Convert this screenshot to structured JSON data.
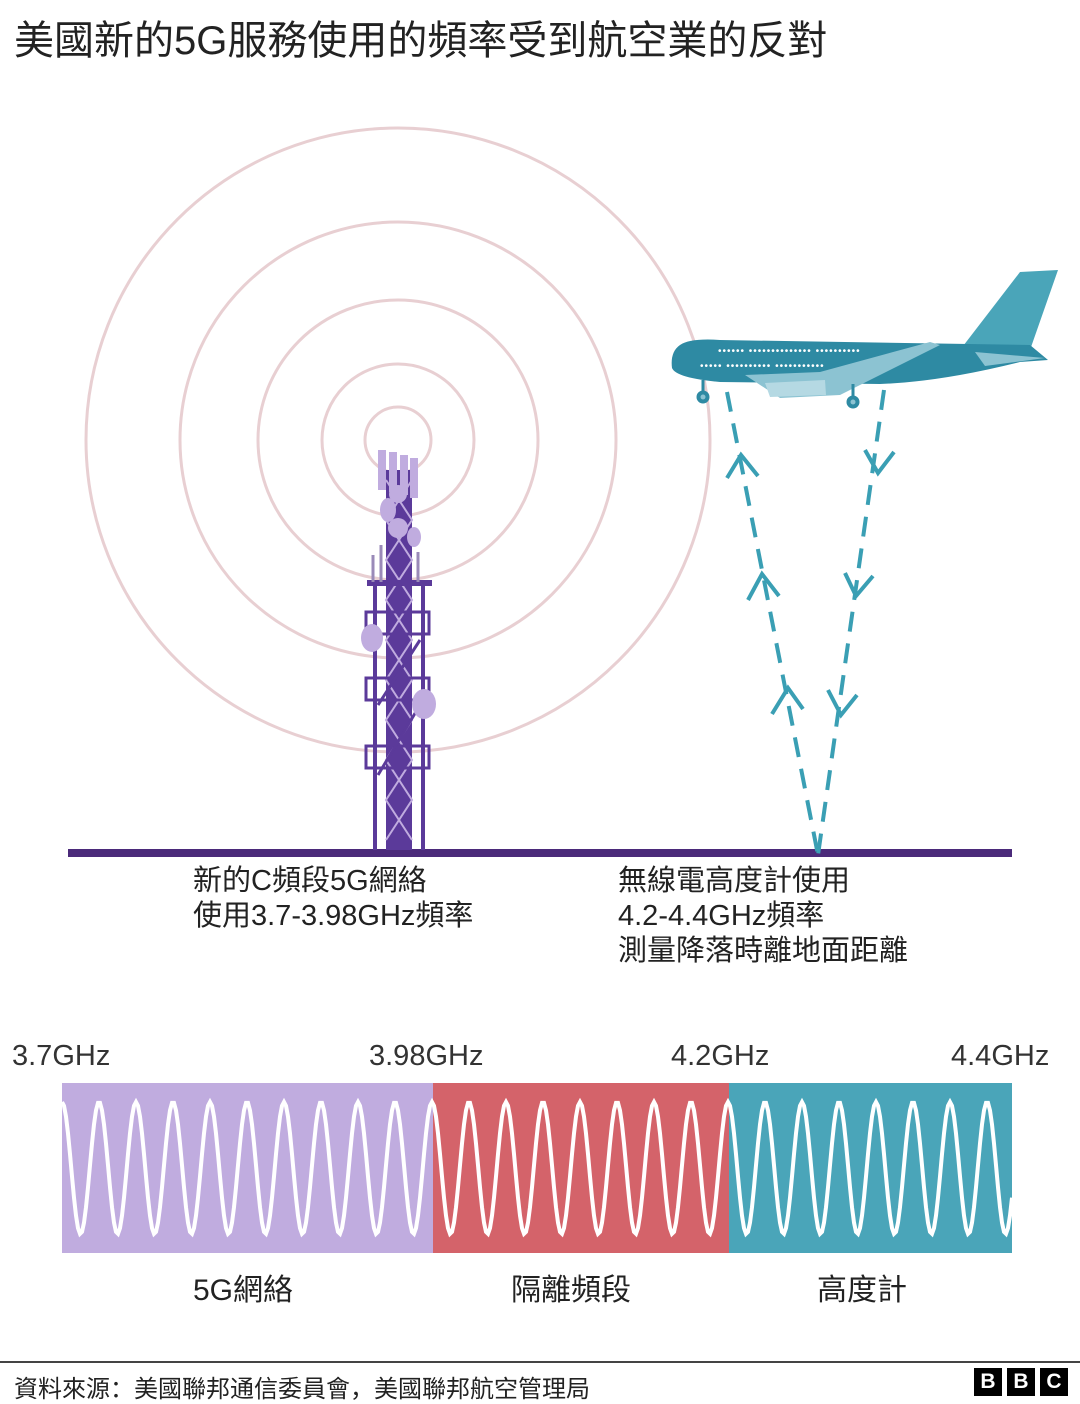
{
  "title": "美國新的5G服務使用的頻率受到航空業的反對",
  "illustration": {
    "icons": [
      "cell-tower-icon",
      "airplane-icon",
      "signal-rings",
      "radar-altimeter-dashed-arrows"
    ],
    "colors": {
      "tower": "#5b3a9a",
      "tower_light": "#c0acdf",
      "rings": "#e8cfd2",
      "ground": "#4b2a7a",
      "plane": "#2e8aa3",
      "plane_light": "#8cc3d2",
      "arrows": "#3a9fb4"
    }
  },
  "captions": {
    "tower": [
      "新的C頻段5G網絡",
      "使用3.7-3.98GHz頻率"
    ],
    "altimeter": [
      "無線電高度計使用",
      "4.2-4.4GHz頻率",
      "測量降落時離地面距離"
    ]
  },
  "spectrum": {
    "ticks": [
      "3.7GHz",
      "3.98GHz",
      "4.2GHz",
      "4.4GHz"
    ],
    "bands": [
      {
        "label": "5G網絡",
        "from_ghz": 3.7,
        "to_ghz": 3.98,
        "color": "#c0acdf"
      },
      {
        "label": "隔離頻段",
        "from_ghz": 3.98,
        "to_ghz": 4.2,
        "color": "#d4636a"
      },
      {
        "label": "高度計",
        "from_ghz": 4.2,
        "to_ghz": 4.4,
        "color": "#4aa5b9"
      }
    ]
  },
  "footer": {
    "source": "資料來源：美國聯邦通信委員會，美國聯邦航空管理局",
    "logo": [
      "B",
      "B",
      "C"
    ]
  }
}
